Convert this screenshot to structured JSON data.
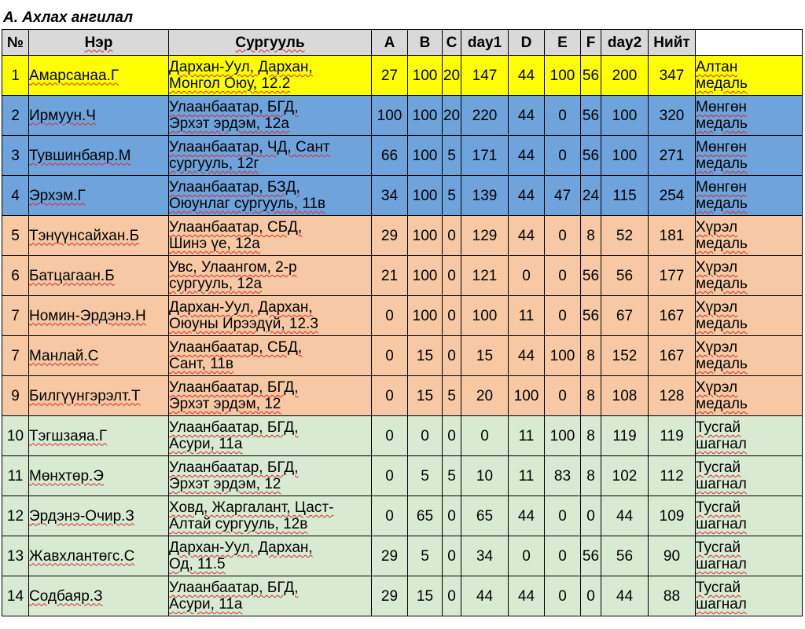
{
  "title": "A. Ахлах ангилал",
  "columns": [
    "№",
    "Нэр",
    "Сургууль",
    "A",
    "B",
    "C",
    "day1",
    "D",
    "E",
    "F",
    "day2",
    "Нийт",
    ""
  ],
  "colors": {
    "gold": "#ffff00",
    "silver": "#6fa3dc",
    "bronze": "#f6c8a3",
    "special": "#d9ead3",
    "header": "#d9d9d9"
  },
  "rows": [
    {
      "rank": "1",
      "name": "Амарсанаа.Г",
      "school1": "Дархан-Уул, Дархан,",
      "school2": "Монгол Оюу, 12.2",
      "A": "27",
      "B": "100",
      "C": "20",
      "day1": "147",
      "D": "44",
      "E": "100",
      "F": "56",
      "day2": "200",
      "total": "347",
      "award1": "Алтан",
      "award2": "медаль",
      "tier": "gold"
    },
    {
      "rank": "2",
      "name": "Ирмуун.Ч",
      "school1": "Улаанбаатар, БГД,",
      "school2": "Эрхэт эрдэм, 12а",
      "A": "100",
      "B": "100",
      "C": "20",
      "day1": "220",
      "D": "44",
      "E": "0",
      "F": "56",
      "day2": "100",
      "total": "320",
      "award1": "Мөнгөн",
      "award2": "медаль",
      "tier": "silver"
    },
    {
      "rank": "3",
      "name": "Тувшинбаяр.М",
      "school1": "Улаанбаатар, ЧД, Сант",
      "school2": "сургууль, 12г",
      "A": "66",
      "B": "100",
      "C": "5",
      "day1": "171",
      "D": "44",
      "E": "0",
      "F": "56",
      "day2": "100",
      "total": "271",
      "award1": "Мөнгөн",
      "award2": "медаль",
      "tier": "silver"
    },
    {
      "rank": "4",
      "name": "Эрхэм.Г",
      "school1": "Улаанбаатар, БЗД,",
      "school2": "Оюунлаг сургууль, 11в",
      "A": "34",
      "B": "100",
      "C": "5",
      "day1": "139",
      "D": "44",
      "E": "47",
      "F": "24",
      "day2": "115",
      "total": "254",
      "award1": "Мөнгөн",
      "award2": "медаль",
      "tier": "silver"
    },
    {
      "rank": "5",
      "name": "Тэнүүнсайхан.Б",
      "school1": "Улаанбаатар, СБД,",
      "school2": "Шинэ үе, 12а",
      "A": "29",
      "B": "100",
      "C": "0",
      "day1": "129",
      "D": "44",
      "E": "0",
      "F": "8",
      "day2": "52",
      "total": "181",
      "award1": "Хүрэл",
      "award2": "медаль",
      "tier": "bronze"
    },
    {
      "rank": "6",
      "name": "Батцагаан.Б",
      "school1": "Увс, Улаангом, 2-р",
      "school2": "сургууль, 12а",
      "A": "21",
      "B": "100",
      "C": "0",
      "day1": "121",
      "D": "0",
      "E": "0",
      "F": "56",
      "day2": "56",
      "total": "177",
      "award1": "Хүрэл",
      "award2": "медаль",
      "tier": "bronze"
    },
    {
      "rank": "7",
      "name": "Номин-Эрдэнэ.Н",
      "school1": "Дархан-Уул, Дархан,",
      "school2": "Оюуны Ирээдүй, 12.3",
      "A": "0",
      "B": "100",
      "C": "0",
      "day1": "100",
      "D": "11",
      "E": "0",
      "F": "56",
      "day2": "67",
      "total": "167",
      "award1": "Хүрэл",
      "award2": "медаль",
      "tier": "bronze"
    },
    {
      "rank": "7",
      "name": "Манлай.С",
      "school1": "Улаанбаатар, СБД,",
      "school2": "Сант, 11в",
      "A": "0",
      "B": "15",
      "C": "0",
      "day1": "15",
      "D": "44",
      "E": "100",
      "F": "8",
      "day2": "152",
      "total": "167",
      "award1": "Хүрэл",
      "award2": "медаль",
      "tier": "bronze"
    },
    {
      "rank": "9",
      "name": "Билгүүнгэрэлт.Т",
      "school1": "Улаанбаатар, БГД,",
      "school2": "Эрхэт эрдэм, 12",
      "A": "0",
      "B": "15",
      "C": "5",
      "day1": "20",
      "D": "100",
      "E": "0",
      "F": "8",
      "day2": "108",
      "total": "128",
      "award1": "Хүрэл",
      "award2": "медаль",
      "tier": "bronze"
    },
    {
      "rank": "10",
      "name": "Тэгшзаяа.Г",
      "school1": "Улаанбаатар, БГД,",
      "school2": "Асури, 11а",
      "A": "0",
      "B": "0",
      "C": "0",
      "day1": "0",
      "D": "11",
      "E": "100",
      "F": "8",
      "day2": "119",
      "total": "119",
      "award1": "Тусгай",
      "award2": "шагнал",
      "tier": "special"
    },
    {
      "rank": "11",
      "name": "Мөнхтөр.Э",
      "school1": "Улаанбаатар, БГД,",
      "school2": "Эрхэт эрдэм, 12",
      "A": "0",
      "B": "5",
      "C": "5",
      "day1": "10",
      "D": "11",
      "E": "83",
      "F": "8",
      "day2": "102",
      "total": "112",
      "award1": "Тусгай",
      "award2": "шагнал",
      "tier": "special"
    },
    {
      "rank": "12",
      "name": "Эрдэнэ-Очир.З",
      "school1": "Ховд, Жаргалант, Цаст-",
      "school2": "Алтай сургууль, 12в",
      "A": "0",
      "B": "65",
      "C": "0",
      "day1": "65",
      "D": "44",
      "E": "0",
      "F": "0",
      "day2": "44",
      "total": "109",
      "award1": "Тусгай",
      "award2": "шагнал",
      "tier": "special"
    },
    {
      "rank": "13",
      "name": "Жавхлантөгс.С",
      "school1": "Дархан-Уул, Дархан,",
      "school2": "Од, 11.5",
      "A": "29",
      "B": "5",
      "C": "0",
      "day1": "34",
      "D": "0",
      "E": "0",
      "F": "56",
      "day2": "56",
      "total": "90",
      "award1": "Тусгай",
      "award2": "шагнал",
      "tier": "special"
    },
    {
      "rank": "14",
      "name": "Содбаяр.З",
      "school1": "Улаанбаатар, БГД,",
      "school2": "Асури, 11а",
      "A": "29",
      "B": "15",
      "C": "0",
      "day1": "44",
      "D": "44",
      "E": "0",
      "F": "0",
      "day2": "44",
      "total": "88",
      "award1": "Тусгай",
      "award2": "шагнал",
      "tier": "special"
    }
  ]
}
